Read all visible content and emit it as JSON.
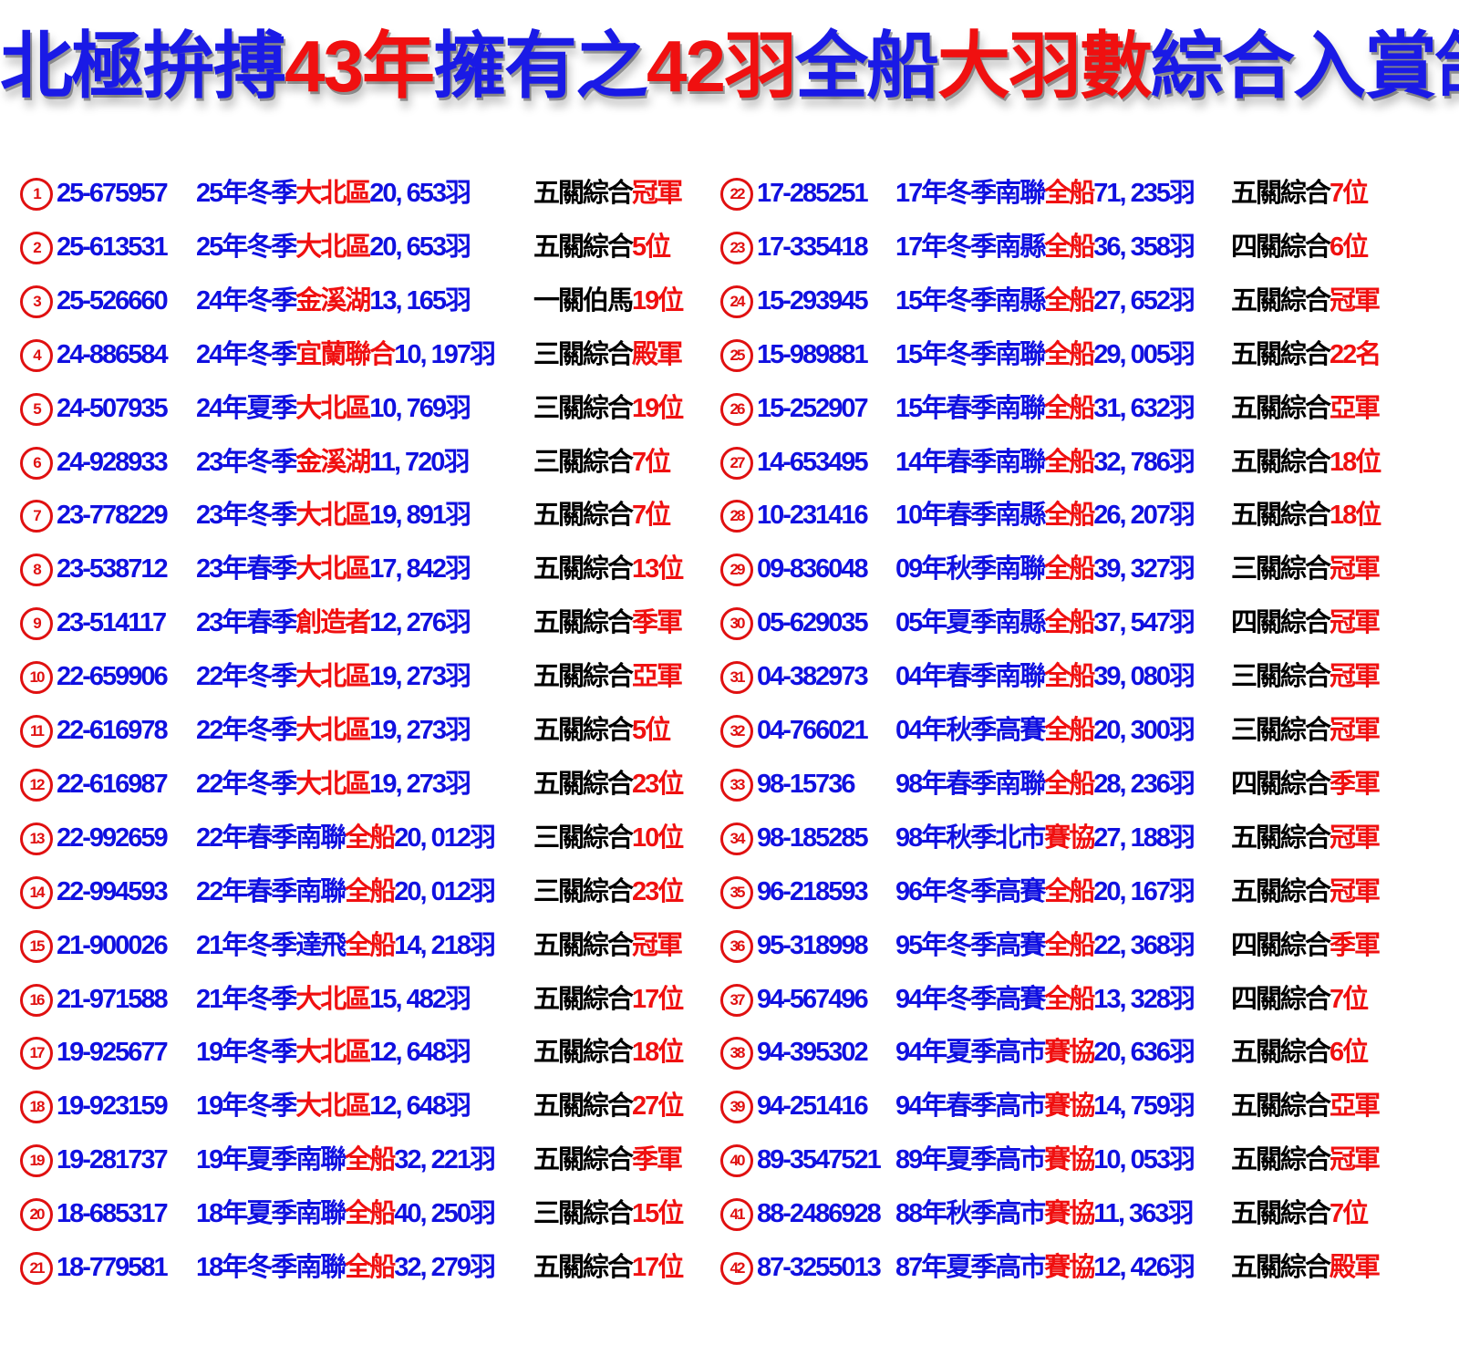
{
  "title": {
    "parts": [
      {
        "text": "北極拚搏",
        "color": "#1a1ae6"
      },
      {
        "text": "43年",
        "color": "#f01010"
      },
      {
        "text": "擁有之",
        "color": "#1a1ae6"
      },
      {
        "text": "42羽",
        "color": "#f01010"
      },
      {
        "text": "全船",
        "color": "#1a1ae6"
      },
      {
        "text": "大羽數",
        "color": "#f01010"
      },
      {
        "text": "綜合入賞鴿",
        "color": "#1a1ae6"
      }
    ]
  },
  "rows": [
    {
      "n": "1",
      "id": "25-675957",
      "season": "25年冬季",
      "org": "大北區",
      "count": "20, 653羽",
      "race": "五關綜合",
      "result": "冠軍"
    },
    {
      "n": "2",
      "id": "25-613531",
      "season": "25年冬季",
      "org": "大北區",
      "count": "20, 653羽",
      "race": "五關綜合",
      "result": "5位"
    },
    {
      "n": "3",
      "id": "25-526660",
      "season": "24年冬季",
      "org": "金溪湖",
      "count": "13, 165羽",
      "race": "一關伯馬",
      "result": "19位"
    },
    {
      "n": "4",
      "id": "24-886584",
      "season": "24年冬季",
      "org": "宜蘭聯合",
      "count": "10, 197羽",
      "race": "三關綜合",
      "result": "殿軍"
    },
    {
      "n": "5",
      "id": "24-507935",
      "season": "24年夏季",
      "org": "大北區",
      "count": "10, 769羽",
      "race": "三關綜合",
      "result": "19位"
    },
    {
      "n": "6",
      "id": "24-928933",
      "season": "23年冬季",
      "org": "金溪湖",
      "count": "11, 720羽",
      "race": "三關綜合",
      "result": "7位"
    },
    {
      "n": "7",
      "id": "23-778229",
      "season": "23年冬季",
      "org": "大北區",
      "count": "19, 891羽",
      "race": "五關綜合",
      "result": "7位"
    },
    {
      "n": "8",
      "id": "23-538712",
      "season": "23年春季",
      "org": "大北區",
      "count": "17, 842羽",
      "race": "五關綜合",
      "result": "13位"
    },
    {
      "n": "9",
      "id": "23-514117",
      "season": "23年春季",
      "org": "創造者",
      "count": "12, 276羽",
      "race": "五關綜合",
      "result": "季軍"
    },
    {
      "n": "10",
      "id": "22-659906",
      "season": "22年冬季",
      "org": "大北區",
      "count": "19, 273羽",
      "race": "五關綜合",
      "result": "亞軍"
    },
    {
      "n": "11",
      "id": "22-616978",
      "season": "22年冬季",
      "org": "大北區",
      "count": "19, 273羽",
      "race": "五關綜合",
      "result": "5位"
    },
    {
      "n": "12",
      "id": "22-616987",
      "season": "22年冬季",
      "org": "大北區",
      "count": "19, 273羽",
      "race": "五關綜合",
      "result": "23位"
    },
    {
      "n": "13",
      "id": "22-992659",
      "season": "22年春季南聯",
      "org": "全船",
      "count": "20, 012羽",
      "race": "三關綜合",
      "result": "10位"
    },
    {
      "n": "14",
      "id": "22-994593",
      "season": "22年春季南聯",
      "org": "全船",
      "count": "20, 012羽",
      "race": "三關綜合",
      "result": "23位"
    },
    {
      "n": "15",
      "id": "21-900026",
      "season": "21年冬季達飛",
      "org": "全船",
      "count": "14, 218羽",
      "race": "五關綜合",
      "result": "冠軍"
    },
    {
      "n": "16",
      "id": "21-971588",
      "season": "21年冬季",
      "org": "大北區",
      "count": "15, 482羽",
      "race": "五關綜合",
      "result": "17位"
    },
    {
      "n": "17",
      "id": "19-925677",
      "season": "19年冬季",
      "org": "大北區",
      "count": "12, 648羽",
      "race": "五關綜合",
      "result": "18位"
    },
    {
      "n": "18",
      "id": "19-923159",
      "season": "19年冬季",
      "org": "大北區",
      "count": "12, 648羽",
      "race": "五關綜合",
      "result": "27位"
    },
    {
      "n": "19",
      "id": "19-281737",
      "season": "19年夏季南聯",
      "org": "全船",
      "count": "32, 221羽",
      "race": "五關綜合",
      "result": "季軍"
    },
    {
      "n": "20",
      "id": "18-685317",
      "season": "18年夏季南聯",
      "org": "全船",
      "count": "40, 250羽",
      "race": "三關綜合",
      "result": "15位"
    },
    {
      "n": "21",
      "id": "18-779581",
      "season": "18年冬季南聯",
      "org": "全船",
      "count": "32, 279羽",
      "race": "五關綜合",
      "result": "17位"
    },
    {
      "n": "22",
      "id": "17-285251",
      "season": "17年冬季南聯",
      "org": "全船",
      "count": "71, 235羽",
      "race": "五關綜合",
      "result": "7位"
    },
    {
      "n": "23",
      "id": "17-335418",
      "season": "17年冬季南縣",
      "org": "全船",
      "count": "36, 358羽",
      "race": "四關綜合",
      "result": "6位"
    },
    {
      "n": "24",
      "id": "15-293945",
      "season": "15年冬季南縣",
      "org": "全船",
      "count": "27, 652羽",
      "race": "五關綜合",
      "result": "冠軍"
    },
    {
      "n": "25",
      "id": "15-989881",
      "season": "15年冬季南聯",
      "org": "全船",
      "count": "29, 005羽",
      "race": "五關綜合",
      "result": "22名"
    },
    {
      "n": "26",
      "id": "15-252907",
      "season": "15年春季南聯",
      "org": "全船",
      "count": "31, 632羽",
      "race": "五關綜合",
      "result": "亞軍"
    },
    {
      "n": "27",
      "id": "14-653495",
      "season": "14年春季南聯",
      "org": "全船",
      "count": "32, 786羽",
      "race": "五關綜合",
      "result": "18位"
    },
    {
      "n": "28",
      "id": "10-231416",
      "season": "10年春季南縣",
      "org": "全船",
      "count": "26, 207羽",
      "race": "五關綜合",
      "result": "18位"
    },
    {
      "n": "29",
      "id": "09-836048",
      "season": "09年秋季南聯",
      "org": "全船",
      "count": "39, 327羽",
      "race": "三關綜合",
      "result": "冠軍"
    },
    {
      "n": "30",
      "id": "05-629035",
      "season": "05年夏季南縣",
      "org": "全船",
      "count": "37, 547羽",
      "race": "四關綜合",
      "result": "冠軍"
    },
    {
      "n": "31",
      "id": "04-382973",
      "season": "04年春季南聯",
      "org": "全船",
      "count": "39, 080羽",
      "race": "三關綜合",
      "result": "冠軍"
    },
    {
      "n": "32",
      "id": "04-766021",
      "season": "04年秋季高賽",
      "org": "全船",
      "count": "20, 300羽",
      "race": "三關綜合",
      "result": "冠軍"
    },
    {
      "n": "33",
      "id": "98-15736",
      "season": "98年春季南聯",
      "org": "全船",
      "count": "28, 236羽",
      "race": "四關綜合",
      "result": "季軍"
    },
    {
      "n": "34",
      "id": "98-185285",
      "season": "98年秋季北市",
      "org": "賽協",
      "count": "27, 188羽",
      "race": "五關綜合",
      "result": "冠軍"
    },
    {
      "n": "35",
      "id": "96-218593",
      "season": "96年冬季高賽",
      "org": "全船",
      "count": "20, 167羽",
      "race": "五關綜合",
      "result": "冠軍"
    },
    {
      "n": "36",
      "id": "95-318998",
      "season": "95年冬季高賽",
      "org": "全船",
      "count": "22, 368羽",
      "race": "四關綜合",
      "result": "季軍"
    },
    {
      "n": "37",
      "id": "94-567496",
      "season": "94年冬季高賽",
      "org": "全船",
      "count": "13, 328羽",
      "race": "四關綜合",
      "result": "7位"
    },
    {
      "n": "38",
      "id": "94-395302",
      "season": "94年夏季高市",
      "org": "賽協",
      "count": "20, 636羽",
      "race": "五關綜合",
      "result": "6位"
    },
    {
      "n": "39",
      "id": "94-251416",
      "season": "94年春季高市",
      "org": "賽協",
      "count": "14, 759羽",
      "race": "五關綜合",
      "result": "亞軍"
    },
    {
      "n": "40",
      "id": "89-3547521",
      "season": "89年夏季高市",
      "org": "賽協",
      "count": "10, 053羽",
      "race": "五關綜合",
      "result": "冠軍"
    },
    {
      "n": "41",
      "id": "88-2486928",
      "season": "88年秋季高市",
      "org": "賽協",
      "count": "11, 363羽",
      "race": "五關綜合",
      "result": "7位"
    },
    {
      "n": "42",
      "id": "87-3255013",
      "season": "87年夏季高市",
      "org": "賽協",
      "count": "12, 426羽",
      "race": "五關綜合",
      "result": "殿軍"
    }
  ]
}
